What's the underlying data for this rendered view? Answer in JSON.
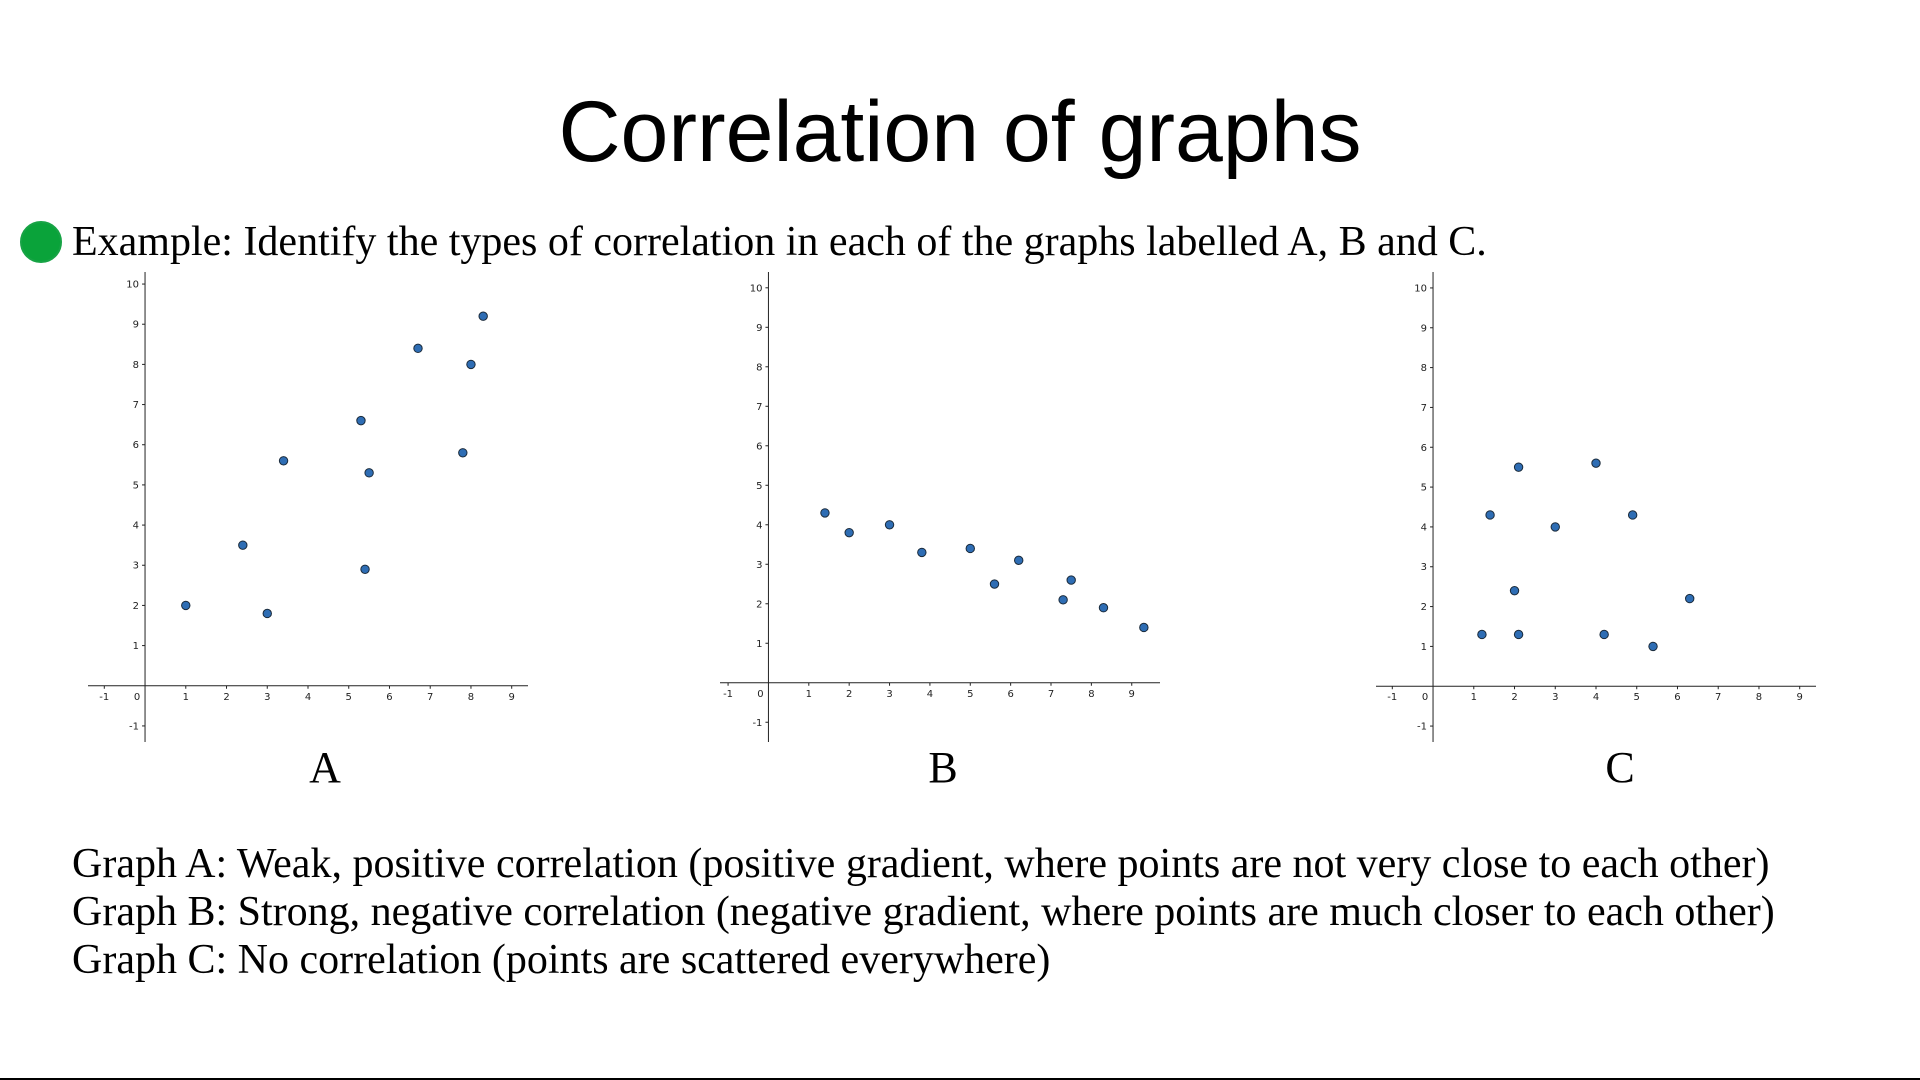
{
  "slide": {
    "title": "Correlation of graphs",
    "bullet_color": "#0aa33a",
    "bullet_text": "Example: Identify the types of correlation in each of the graphs labelled A, B and C.",
    "answers": [
      "Graph A: Weak, positive correlation (positive gradient, where points are not very close to each other)",
      "Graph B: Strong, negative correlation (negative gradient, where points are much closer to each other)",
      "Graph C: No correlation (points are scattered everywhere)"
    ]
  },
  "chart_data": [
    {
      "type": "scatter",
      "label": "A",
      "xlim": [
        -1.4,
        9.4
      ],
      "ylim": [
        -1.4,
        10.3
      ],
      "x_ticks": [
        -1,
        0,
        1,
        2,
        3,
        4,
        5,
        6,
        7,
        8,
        9
      ],
      "y_ticks": [
        -1,
        1,
        2,
        3,
        4,
        5,
        6,
        7,
        8,
        9,
        10
      ],
      "point_color": "#2e6db4",
      "points": [
        {
          "x": 1.0,
          "y": 2.0
        },
        {
          "x": 2.4,
          "y": 3.5
        },
        {
          "x": 3.0,
          "y": 1.8
        },
        {
          "x": 3.4,
          "y": 5.6
        },
        {
          "x": 5.3,
          "y": 6.6
        },
        {
          "x": 5.5,
          "y": 5.3
        },
        {
          "x": 5.4,
          "y": 2.9
        },
        {
          "x": 6.7,
          "y": 8.4
        },
        {
          "x": 7.8,
          "y": 5.8
        },
        {
          "x": 8.0,
          "y": 8.0
        },
        {
          "x": 8.3,
          "y": 9.2
        }
      ]
    },
    {
      "type": "scatter",
      "label": "B",
      "xlim": [
        -1.2,
        9.7
      ],
      "ylim": [
        -1.5,
        10.4
      ],
      "x_ticks": [
        -1,
        0,
        1,
        2,
        3,
        4,
        5,
        6,
        7,
        8,
        9
      ],
      "y_ticks": [
        -1,
        1,
        2,
        3,
        4,
        5,
        6,
        7,
        8,
        9,
        10
      ],
      "point_color": "#2e6db4",
      "points": [
        {
          "x": 1.4,
          "y": 4.3
        },
        {
          "x": 2.0,
          "y": 3.8
        },
        {
          "x": 3.0,
          "y": 4.0
        },
        {
          "x": 3.8,
          "y": 3.3
        },
        {
          "x": 5.0,
          "y": 3.4
        },
        {
          "x": 5.6,
          "y": 2.5
        },
        {
          "x": 6.2,
          "y": 3.1
        },
        {
          "x": 7.3,
          "y": 2.1
        },
        {
          "x": 7.5,
          "y": 2.6
        },
        {
          "x": 8.3,
          "y": 1.9
        },
        {
          "x": 9.3,
          "y": 1.4
        }
      ]
    },
    {
      "type": "scatter",
      "label": "C",
      "xlim": [
        -1.4,
        9.4
      ],
      "ylim": [
        -1.4,
        10.4
      ],
      "x_ticks": [
        -1,
        0,
        1,
        2,
        3,
        4,
        5,
        6,
        7,
        8,
        9
      ],
      "y_ticks": [
        -1,
        1,
        2,
        3,
        4,
        5,
        6,
        7,
        8,
        9,
        10
      ],
      "point_color": "#2e6db4",
      "points": [
        {
          "x": 1.2,
          "y": 1.3
        },
        {
          "x": 1.4,
          "y": 4.3
        },
        {
          "x": 2.0,
          "y": 2.4
        },
        {
          "x": 2.1,
          "y": 1.3
        },
        {
          "x": 2.1,
          "y": 5.5
        },
        {
          "x": 3.0,
          "y": 4.0
        },
        {
          "x": 4.0,
          "y": 5.6
        },
        {
          "x": 4.2,
          "y": 1.3
        },
        {
          "x": 4.9,
          "y": 4.3
        },
        {
          "x": 5.4,
          "y": 1.0
        },
        {
          "x": 6.3,
          "y": 2.2
        }
      ]
    }
  ]
}
